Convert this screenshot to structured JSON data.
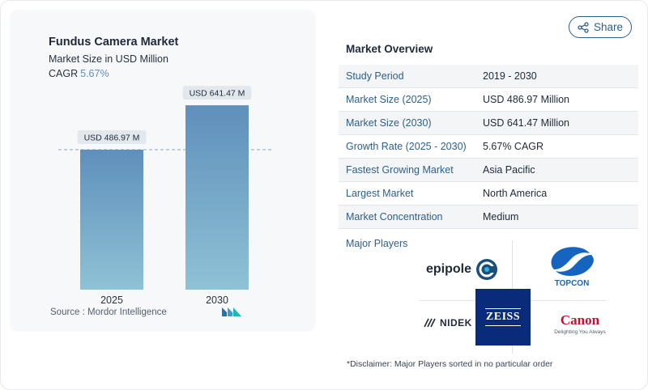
{
  "chart": {
    "title": "Fundus Camera Market",
    "subtitle": "Market Size in USD Million",
    "cagr_label": "CAGR",
    "cagr_value": "5.67%",
    "source": "Source :  Mordor Intelligence"
  },
  "chart_data": {
    "type": "bar",
    "title": "Fundus Camera Market",
    "categories": [
      "2025",
      "2030"
    ],
    "values": [
      486.97,
      641.47
    ],
    "value_labels": [
      "USD 486.97 M",
      "USD 641.47 M"
    ],
    "unit": "USD Million",
    "ylim": [
      0,
      760
    ],
    "grid": false,
    "reference_line": "dashed line at 2025 value",
    "bar_color": "#6a9dc4"
  },
  "header": {
    "share_label": "Share"
  },
  "overview": {
    "title": "Market Overview",
    "rows": [
      {
        "label": "Study Period",
        "value": "2019 - 2030"
      },
      {
        "label": "Market Size (2025)",
        "value": "USD 486.97 Million"
      },
      {
        "label": "Market Size (2030)",
        "value": "USD 641.47 Million"
      },
      {
        "label": "Growth Rate (2025 - 2030)",
        "value": "5.67% CAGR"
      },
      {
        "label": "Fastest Growing Market",
        "value": "Asia Pacific"
      },
      {
        "label": "Largest Market",
        "value": "North America"
      },
      {
        "label": "Market Concentration",
        "value": "Medium"
      }
    ],
    "players_label": "Major Players",
    "players": {
      "epipole": "epipole",
      "topcon": "TOPCON",
      "nidek": "NIDEK",
      "zeiss": "ZEISS",
      "canon": "Canon",
      "canon_tagline": "Delighting You Always"
    },
    "disclaimer": "*Disclaimer: Major Players sorted in no particular order"
  },
  "colors": {
    "accent": "#2d5f8b",
    "bar": "#6a9dc4",
    "zeiss_blue": "#0a2a7a",
    "canon_red": "#c8102e",
    "topcon_blue": "#1565c0"
  }
}
